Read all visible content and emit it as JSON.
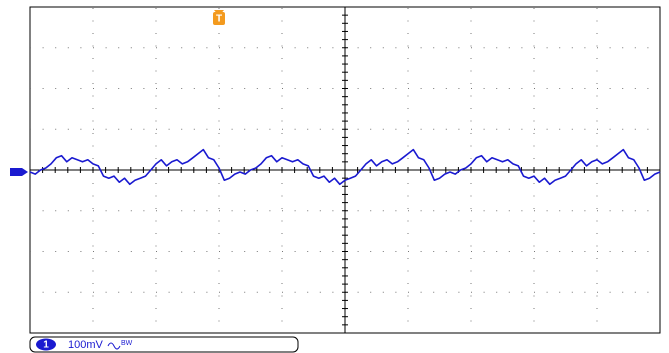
{
  "chart_data": {
    "type": "line",
    "ylim": [
      -400,
      400
    ],
    "trigger_label": "T",
    "channel_label": "1",
    "scale_label": "100mV",
    "bandwidth_label": "BW",
    "series": [
      {
        "name": "1",
        "color": "#1a1ad0",
        "values": [
          -5,
          -10,
          0,
          5,
          15,
          30,
          35,
          20,
          30,
          25,
          20,
          25,
          15,
          10,
          -15,
          -20,
          -15,
          -30,
          -20,
          -35,
          -25,
          -20,
          -15,
          0,
          15,
          25,
          10,
          20,
          25,
          15,
          20,
          30,
          40,
          50,
          30,
          25,
          5,
          -25,
          -20,
          -10,
          -5,
          -10,
          0,
          5,
          15,
          30,
          35,
          20,
          30,
          25,
          20,
          25,
          15,
          10,
          -15,
          -20,
          -15,
          -30,
          -20,
          -35,
          -25,
          -20,
          -15,
          0,
          15,
          25,
          10,
          20,
          25,
          15,
          20,
          30,
          40,
          50,
          30,
          25,
          5,
          -25,
          -20,
          -10,
          -5,
          -10,
          0,
          5,
          15,
          30,
          35,
          20,
          30,
          25,
          20,
          25,
          15,
          10,
          -15,
          -20,
          -15,
          -30,
          -20,
          -35,
          -25,
          -20,
          -15,
          0,
          15,
          25,
          10,
          20,
          25,
          15,
          20,
          30,
          40,
          50,
          30,
          25,
          5,
          -25,
          -20,
          -10,
          -5
        ]
      }
    ]
  }
}
